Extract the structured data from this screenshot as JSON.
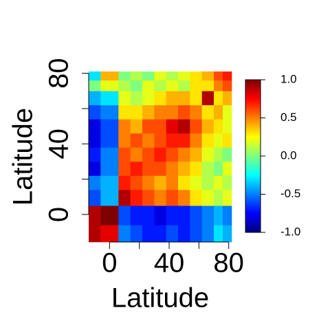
{
  "chart_data": {
    "type": "heatmap",
    "xlabel": "Latitude",
    "ylabel": "Latitude",
    "x_edges": [
      -14,
      -6,
      6,
      14,
      22,
      30,
      38,
      46,
      54,
      62,
      70,
      76,
      82
    ],
    "y_edges": [
      -15.6,
      -6,
      5,
      14,
      22,
      30,
      38,
      46,
      54,
      62,
      70,
      76,
      81
    ],
    "values": [
      [
        0.9,
        0.8,
        -0.5,
        -0.6,
        -0.7,
        -0.7,
        -0.6,
        -0.7,
        -0.6,
        -0.5,
        -0.3,
        -0.4
      ],
      [
        0.9,
        1.0,
        -0.6,
        -0.7,
        -0.7,
        -0.8,
        -0.7,
        -0.7,
        -0.6,
        -0.5,
        -0.4,
        -0.5
      ],
      [
        -0.6,
        -0.4,
        0.9,
        0.7,
        0.6,
        0.5,
        0.6,
        0.5,
        0.3,
        0.2,
        0.1,
        0.2
      ],
      [
        -0.5,
        -0.4,
        0.7,
        0.6,
        0.5,
        0.4,
        0.5,
        0.3,
        0.2,
        0.1,
        0.2,
        0.1
      ],
      [
        -0.8,
        -0.5,
        0.6,
        0.7,
        0.6,
        0.6,
        0.5,
        0.4,
        0.3,
        0.1,
        0.0,
        0.2
      ],
      [
        -0.7,
        -0.5,
        0.6,
        0.5,
        0.6,
        0.7,
        0.6,
        0.5,
        0.4,
        0.2,
        0.1,
        0.0
      ],
      [
        -0.8,
        -0.6,
        0.5,
        0.6,
        0.5,
        0.6,
        0.7,
        0.7,
        0.5,
        0.3,
        0.2,
        0.3
      ],
      [
        -0.8,
        -0.6,
        0.5,
        0.4,
        0.6,
        0.6,
        0.8,
        0.9,
        0.6,
        0.4,
        0.3,
        0.2
      ],
      [
        -0.6,
        -0.5,
        0.3,
        0.3,
        0.4,
        0.5,
        0.5,
        0.6,
        0.5,
        0.3,
        0.4,
        0.2
      ],
      [
        -0.4,
        -0.3,
        0.2,
        0.1,
        0.2,
        0.3,
        0.4,
        0.4,
        0.3,
        0.9,
        0.3,
        0.4
      ],
      [
        0.0,
        0.2,
        0.1,
        0.0,
        0.2,
        0.1,
        0.2,
        0.1,
        0.3,
        0.3,
        0.5,
        0.6
      ],
      [
        -0.3,
        0.4,
        0.0,
        0.1,
        0.0,
        0.2,
        0.1,
        0.2,
        0.3,
        0.4,
        0.6,
        0.7
      ]
    ],
    "xlim": [
      -14,
      82
    ],
    "ylim": [
      -15.6,
      81
    ],
    "xticks": [
      0,
      40,
      80
    ],
    "minor_xticks": [
      20,
      60
    ],
    "yticks": [
      0,
      40,
      80
    ],
    "minor_yticks": [
      20,
      60
    ],
    "zlim": [
      -1,
      1
    ],
    "zticks": [
      {
        "value": -1,
        "label": "-1.0"
      },
      -0.5,
      {
        "value": 0,
        "label": "0.0"
      },
      0.5,
      {
        "value": 1,
        "label": "1.0"
      }
    ],
    "colors": [
      "#00007F",
      "#0000FF",
      "#007FFF",
      "#00FFFF",
      "#7FFF7F",
      "#FFFF00",
      "#FF7F00",
      "#FF0000",
      "#7F0000"
    ]
  }
}
